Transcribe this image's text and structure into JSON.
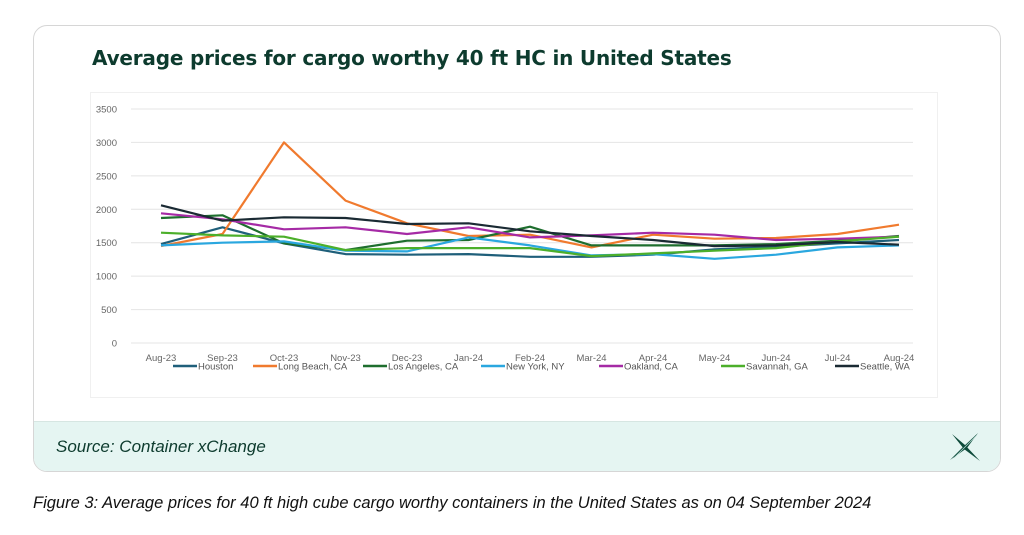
{
  "chart_data": {
    "type": "line",
    "title": "Average prices for cargo worthy 40 ft HC in United States",
    "xlabel": "",
    "ylabel": "",
    "ylim": [
      0,
      3500
    ],
    "yticks": [
      0,
      500,
      1000,
      1500,
      2000,
      2500,
      3000,
      3500
    ],
    "grid": true,
    "legend_position": "bottom",
    "categories": [
      "Aug-23",
      "Sep-23",
      "Oct-23",
      "Nov-23",
      "Dec-23",
      "Jan-24",
      "Feb-24",
      "Mar-24",
      "Apr-24",
      "May-24",
      "Jun-24",
      "Jul-24",
      "Aug-24"
    ],
    "series": [
      {
        "name": "Houston",
        "color": "#1f5f7a",
        "values": [
          1480,
          1730,
          1490,
          1330,
          1320,
          1330,
          1290,
          1290,
          1320,
          1400,
          1440,
          1490,
          1540
        ]
      },
      {
        "name": "Long Beach, CA",
        "color": "#f07a2e",
        "values": [
          1450,
          1630,
          3000,
          2130,
          1790,
          1600,
          1620,
          1430,
          1620,
          1560,
          1570,
          1630,
          1770
        ]
      },
      {
        "name": "Los Angeles, CA",
        "color": "#1e6e2e",
        "values": [
          1870,
          1910,
          1490,
          1390,
          1530,
          1540,
          1740,
          1460,
          1460,
          1460,
          1480,
          1530,
          1600
        ]
      },
      {
        "name": "New York, NY",
        "color": "#2aa7df",
        "values": [
          1460,
          1500,
          1520,
          1380,
          1370,
          1580,
          1460,
          1310,
          1330,
          1260,
          1320,
          1430,
          1460
        ]
      },
      {
        "name": "Oakland, CA",
        "color": "#a52aa5",
        "values": [
          1940,
          1850,
          1700,
          1730,
          1630,
          1730,
          1580,
          1610,
          1650,
          1620,
          1540,
          1560,
          1590
        ]
      },
      {
        "name": "Savannah, GA",
        "color": "#4caf2a",
        "values": [
          1650,
          1610,
          1590,
          1390,
          1420,
          1420,
          1420,
          1300,
          1340,
          1380,
          1420,
          1520,
          1590
        ]
      },
      {
        "name": "Seattle, WA",
        "color": "#1a2a33",
        "values": [
          2060,
          1830,
          1880,
          1870,
          1780,
          1790,
          1670,
          1600,
          1540,
          1450,
          1460,
          1510,
          1470
        ]
      }
    ]
  },
  "footer": {
    "source": "Source: Container xChange"
  },
  "caption": "Figure 3: Average prices for 40 ft high cube cargo worthy containers in the United States as on 04 September 2024",
  "colors": {
    "title": "#0d3b2e",
    "footer_bg": "#e5f5f2"
  },
  "logo": {
    "icon": "container-xchange-star-logo"
  }
}
